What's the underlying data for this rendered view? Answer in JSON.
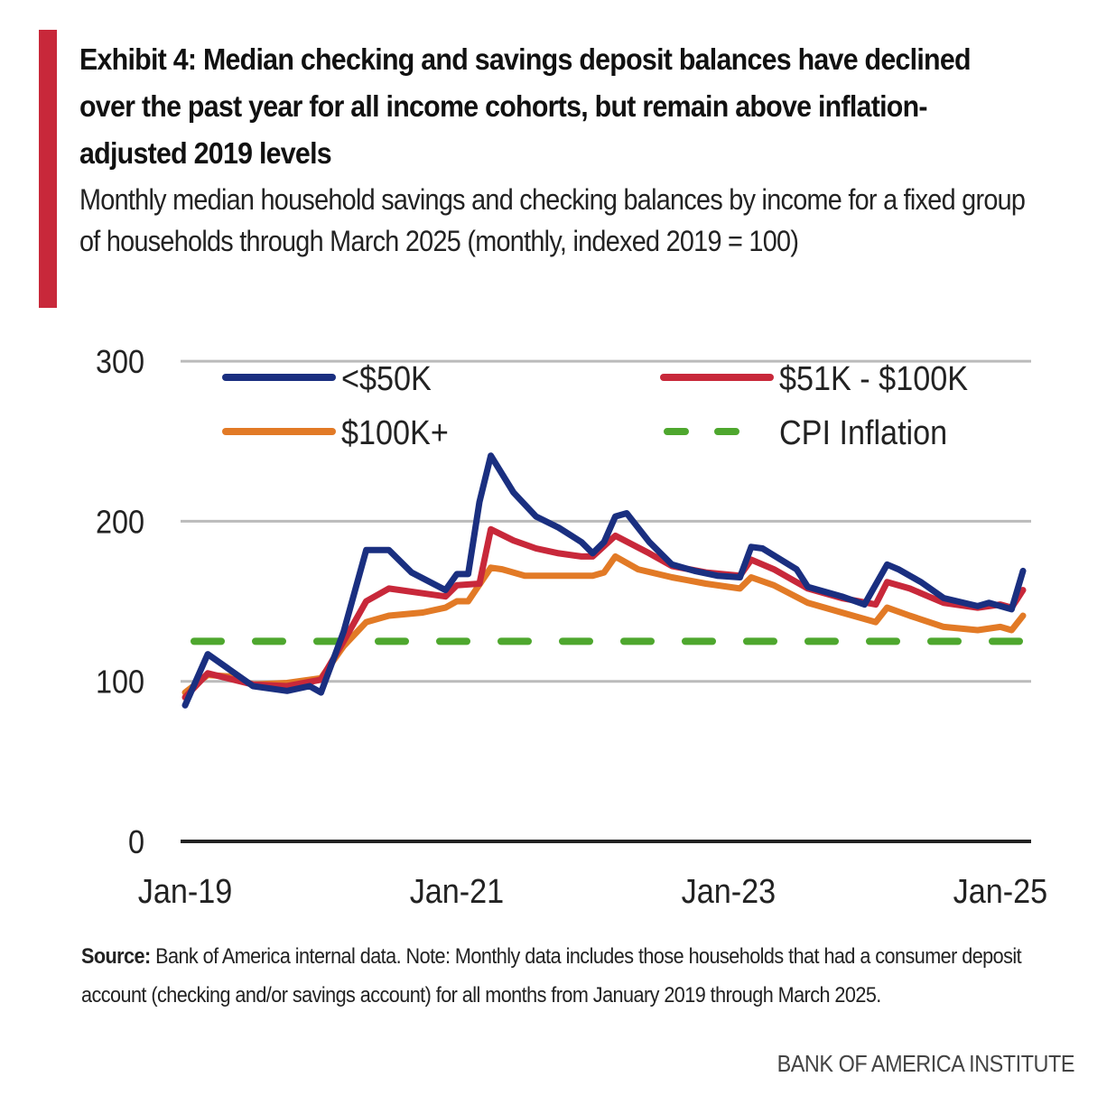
{
  "title": "Exhibit 4: Median checking and savings deposit balances have declined over the past year for all income cohorts, but remain above inflation-adjusted 2019 levels",
  "subtitle": "Monthly median household savings and checking balances by income for a fixed group of households through March 2025 (monthly, indexed 2019 = 100)",
  "source_label": "Source:",
  "source_text": "Bank of America internal data. Note: Monthly data includes those households that had a consumer deposit account (checking and/or savings account) for all months from January 2019 through March 2025.",
  "brand": "BANK OF AMERICA INSTITUTE",
  "chart_data": {
    "type": "line",
    "x_unit": "months since Jan-2019",
    "xlim": [
      0,
      74
    ],
    "ylim": [
      0,
      300
    ],
    "yticks": [
      0,
      100,
      200,
      300
    ],
    "ytick_labels": [
      "0",
      "100",
      "200",
      "300"
    ],
    "xticks": [
      0,
      24,
      48,
      72
    ],
    "xtick_labels": [
      "Jan-19",
      "Jan-21",
      "Jan-23",
      "Jan-25"
    ],
    "grid": true,
    "legend_placement": "top",
    "series": [
      {
        "name": "<$50K",
        "color": "#1a2f80",
        "dashed": false,
        "x": [
          0,
          2,
          6,
          9,
          11,
          12,
          14,
          16,
          18,
          20,
          23,
          24,
          25,
          26,
          27,
          29,
          31,
          33,
          35,
          36,
          37,
          38,
          39,
          41,
          43,
          45,
          47,
          49,
          50,
          51,
          54,
          55,
          58,
          60,
          62,
          63,
          65,
          67,
          70,
          71,
          73,
          74
        ],
        "y": [
          85,
          117,
          97,
          94,
          97,
          93,
          131,
          182,
          182,
          168,
          157,
          167,
          167,
          212,
          241,
          218,
          203,
          196,
          187,
          180,
          187,
          203,
          205,
          187,
          173,
          169,
          166,
          165,
          184,
          183,
          170,
          159,
          153,
          148,
          173,
          170,
          162,
          152,
          147,
          149,
          145,
          169
        ]
      },
      {
        "name": "$51K - $100K",
        "color": "#c8283a",
        "dashed": false,
        "x": [
          0,
          2,
          6,
          9,
          12,
          14,
          16,
          18,
          21,
          23,
          24,
          26,
          27,
          29,
          31,
          33,
          35,
          36,
          38,
          41,
          43,
          46,
          49,
          50,
          52,
          55,
          58,
          61,
          62,
          64,
          67,
          70,
          72,
          73,
          74
        ],
        "y": [
          90,
          105,
          98,
          97,
          101,
          125,
          150,
          158,
          155,
          153,
          160,
          161,
          195,
          188,
          183,
          180,
          178,
          178,
          191,
          180,
          172,
          168,
          166,
          176,
          170,
          158,
          152,
          148,
          162,
          158,
          149,
          146,
          148,
          146,
          157
        ]
      },
      {
        "name": "$100K+",
        "color": "#e27a26",
        "dashed": false,
        "x": [
          0,
          2,
          4,
          6,
          9,
          12,
          14,
          16,
          18,
          21,
          23,
          24,
          25,
          27,
          28,
          30,
          33,
          36,
          37,
          38,
          40,
          43,
          46,
          49,
          50,
          52,
          55,
          58,
          61,
          62,
          64,
          67,
          70,
          72,
          73,
          74
        ],
        "y": [
          93,
          104,
          103,
          98,
          99,
          102,
          122,
          137,
          141,
          143,
          146,
          150,
          150,
          171,
          170,
          166,
          166,
          166,
          168,
          178,
          170,
          165,
          161,
          158,
          165,
          160,
          149,
          143,
          137,
          146,
          141,
          134,
          132,
          134,
          132,
          141
        ]
      },
      {
        "name": "CPI Inflation",
        "color": "#4ea72e",
        "dashed": true,
        "x": [
          0,
          74
        ],
        "y": [
          125,
          125
        ]
      }
    ]
  }
}
